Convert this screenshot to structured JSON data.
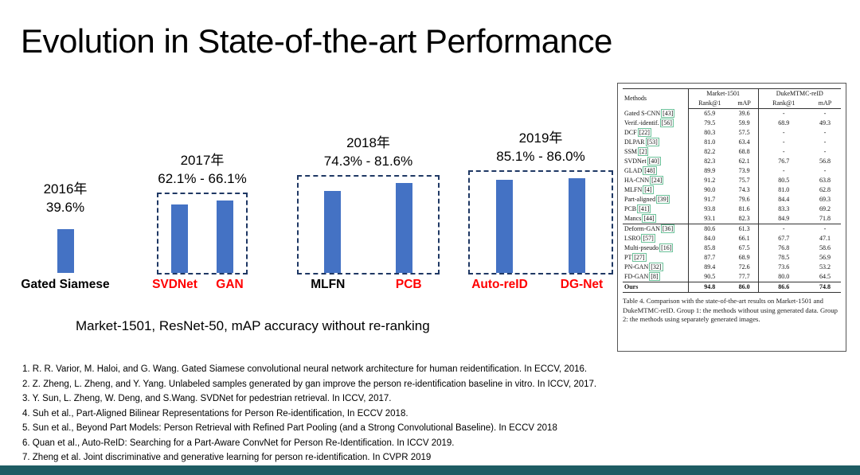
{
  "slide": {
    "title": "Evolution in State-of-the-art Performance",
    "chart_note": "Market-1501, ResNet-50, mAP accuracy without re-ranking",
    "background": "#FFFFFF",
    "footer_color": "#1E5C63"
  },
  "chart_data": {
    "type": "bar",
    "bar_color": "#4472C4",
    "box_border_color": "#1F3864",
    "highlight_label_color": "#FF0000",
    "value_unit": "% mAP",
    "ylim": [
      0,
      100
    ],
    "groups": [
      {
        "year_label": "2016年",
        "range_label": "39.6%",
        "boxed": false,
        "bars": [
          {
            "label": "Gated Siamese",
            "value": 39.6,
            "label_color": "#000000"
          }
        ]
      },
      {
        "year_label": "2017年",
        "range_label": "62.1% - 66.1%",
        "boxed": true,
        "box_style": "dashed",
        "bars": [
          {
            "label": "SVDNet",
            "value": 62.1,
            "label_color": "#FF0000"
          },
          {
            "label": "GAN",
            "value": 66.1,
            "label_color": "#FF0000"
          }
        ]
      },
      {
        "year_label": "2018年",
        "range_label": "74.3% - 81.6%",
        "boxed": true,
        "box_style": "dashdot",
        "bars": [
          {
            "label": "MLFN",
            "value": 74.3,
            "label_color": "#000000"
          },
          {
            "label": "PCB",
            "value": 81.6,
            "label_color": "#FF0000"
          }
        ]
      },
      {
        "year_label": "2019年",
        "range_label": "85.1% - 86.0%",
        "boxed": true,
        "box_style": "dashdot",
        "bars": [
          {
            "label": "Auto-reID",
            "value": 85.1,
            "label_color": "#FF0000"
          },
          {
            "label": "DG-Net",
            "value": 86.0,
            "label_color": "#FF0000"
          }
        ]
      }
    ]
  },
  "table": {
    "header": {
      "methods": "Methods",
      "dataset1": "Market-1501",
      "dataset2": "DukeMTMC-reID",
      "subcols": [
        "Rank@1",
        "mAP",
        "Rank@1",
        "mAP"
      ]
    },
    "group1_rows": [
      {
        "method": "Gated S-CNN",
        "ref": "[43]",
        "values": [
          "65.9",
          "39.6",
          "-",
          "-"
        ]
      },
      {
        "method": "Verif.-identif.",
        "ref": "[56]",
        "values": [
          "79.5",
          "59.9",
          "68.9",
          "49.3"
        ]
      },
      {
        "method": "DCF",
        "ref": "[22]",
        "values": [
          "80.3",
          "57.5",
          "-",
          "-"
        ]
      },
      {
        "method": "DLPAR",
        "ref": "[53]",
        "values": [
          "81.0",
          "63.4",
          "-",
          "-"
        ]
      },
      {
        "method": "SSM",
        "ref": "[2]",
        "values": [
          "82.2",
          "68.8",
          "-",
          "-"
        ]
      },
      {
        "method": "SVDNet",
        "ref": "[40]",
        "values": [
          "82.3",
          "62.1",
          "76.7",
          "56.8"
        ]
      },
      {
        "method": "GLAD",
        "ref": "[48]",
        "values": [
          "89.9",
          "73.9",
          "-",
          "-"
        ]
      },
      {
        "method": "HA-CNN",
        "ref": "[24]",
        "values": [
          "91.2",
          "75.7",
          "80.5",
          "63.8"
        ]
      },
      {
        "method": "MLFN",
        "ref": "[4]",
        "values": [
          "90.0",
          "74.3",
          "81.0",
          "62.8"
        ]
      },
      {
        "method": "Part-aligned",
        "ref": "[39]",
        "values": [
          "91.7",
          "79.6",
          "84.4",
          "69.3"
        ]
      },
      {
        "method": "PCB",
        "ref": "[41]",
        "values": [
          "93.8",
          "81.6",
          "83.3",
          "69.2"
        ]
      },
      {
        "method": "Mancs",
        "ref": "[44]",
        "values": [
          "93.1",
          "82.3",
          "84.9",
          "71.8"
        ]
      }
    ],
    "group2_rows": [
      {
        "method": "Deform-GAN",
        "ref": "[36]",
        "values": [
          "80.6",
          "61.3",
          "-",
          "-"
        ]
      },
      {
        "method": "LSRO",
        "ref": "[57]",
        "values": [
          "84.0",
          "66.1",
          "67.7",
          "47.1"
        ]
      },
      {
        "method": "Multi-pseudo",
        "ref": "[16]",
        "values": [
          "85.8",
          "67.5",
          "76.8",
          "58.6"
        ]
      },
      {
        "method": "PT",
        "ref": "[27]",
        "values": [
          "87.7",
          "68.9",
          "78.5",
          "56.9"
        ]
      },
      {
        "method": "PN-GAN",
        "ref": "[32]",
        "values": [
          "89.4",
          "72.6",
          "73.6",
          "53.2"
        ]
      },
      {
        "method": "FD-GAN",
        "ref": "[8]",
        "values": [
          "90.5",
          "77.7",
          "80.0",
          "64.5"
        ]
      }
    ],
    "ours_row": {
      "method": "Ours",
      "ref": "",
      "values": [
        "94.8",
        "86.0",
        "86.6",
        "74.8"
      ]
    },
    "caption": "Table 4.  Comparison with the state-of-the-art results on Market-1501 and DukeMTMC-reID. Group 1: the methods without using generated data. Group 2: the methods using separately generated images."
  },
  "references": [
    "R. R. Varior, M. Haloi, and G. Wang. Gated Siamese convolutional neural network architecture for human reidentification. In ECCV, 2016.",
    "Z. Zheng, L. Zheng, and Y. Yang. Unlabeled samples generated by gan improve the person re-identification baseline in vitro. In ICCV, 2017.",
    "Y. Sun, L. Zheng, W. Deng, and S.Wang. SVDNet for pedestrian retrieval. In ICCV, 2017.",
    "Suh et al., Part-Aligned Bilinear Representations for Person Re-identification, In ECCV 2018.",
    "Sun et al., Beyond Part Models: Person Retrieval with Refined Part Pooling (and a Strong Convolutional Baseline). In ECCV 2018",
    "Quan et al., Auto-ReID: Searching for a Part-Aware ConvNet for Person Re-Identification. In  ICCV 2019.",
    "Zheng et al. Joint discriminative and generative learning for person re-identification. In CVPR 2019"
  ]
}
